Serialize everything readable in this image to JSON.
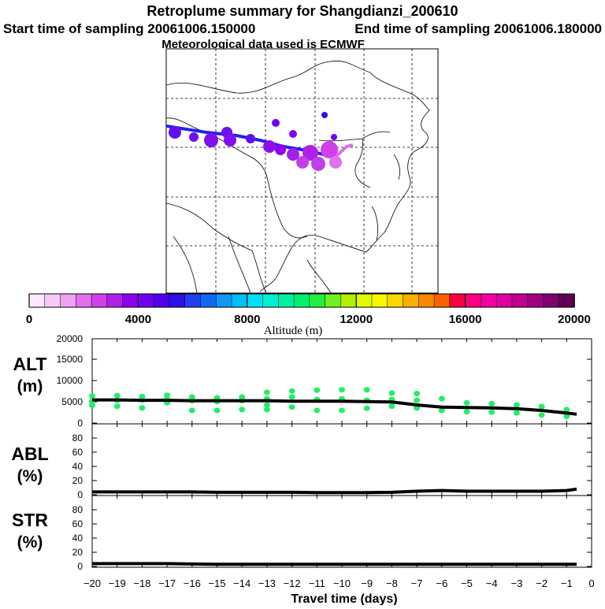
{
  "header": {
    "title": "Retroplume summary for Shangdianzi_200610",
    "start_label": "Start time of sampling 20061006.150000",
    "end_label": "End time of sampling 20061006.180000",
    "met_label": "Meteorological data used is ECMWF"
  },
  "colors": {
    "scale": [
      "#ffe8ff",
      "#f8c8f8",
      "#f0a0f0",
      "#e070ec",
      "#d040e8",
      "#b020e8",
      "#9000f0",
      "#7000f0",
      "#5000e8",
      "#3010e8",
      "#2040f0",
      "#1068f0",
      "#1098f8",
      "#00c0f8",
      "#00e0f8",
      "#00f0d0",
      "#00f0a0",
      "#00f070",
      "#20f040",
      "#70f020",
      "#b0f000",
      "#e0f800",
      "#f8f800",
      "#f8d800",
      "#f8b000",
      "#f88800",
      "#f86000",
      "#f80040",
      "#f80080",
      "#f000a0",
      "#e000a0",
      "#c00090",
      "#a00080",
      "#800070",
      "#600050"
    ],
    "alt_points": "#22ee66",
    "line": "#000000",
    "trajectory": "#3020e8"
  },
  "colorbar": {
    "tick_labels": [
      "0",
      "4000",
      "8000",
      "12000",
      "16000",
      "20000"
    ],
    "label": "Altitude (m)"
  },
  "chart_data": [
    {
      "type": "line",
      "name": "ALT",
      "ylabel": "ALT",
      "yunit": "(m)",
      "ylim": [
        0,
        20000
      ],
      "yticks": [
        "20000",
        "15000",
        "10000",
        "5000",
        "0"
      ],
      "x": [
        -20,
        -19,
        -18,
        -17,
        -16,
        -15,
        -14,
        -13,
        -12,
        -11,
        -10,
        -9,
        -8,
        -7,
        -6,
        -5,
        -4,
        -3,
        -2,
        -1,
        -0.6
      ],
      "mean": [
        5500,
        5500,
        5400,
        5400,
        5300,
        5300,
        5300,
        5300,
        5200,
        5200,
        5200,
        5100,
        5000,
        4300,
        3800,
        3700,
        3600,
        3400,
        3000,
        2400,
        2100
      ],
      "scatter_x": [
        -20,
        -20,
        -20,
        -19,
        -19,
        -19,
        -18,
        -18,
        -18,
        -17,
        -17,
        -17,
        -16,
        -16,
        -16,
        -15,
        -15,
        -15,
        -14,
        -14,
        -14,
        -13,
        -13,
        -13,
        -13,
        -12,
        -12,
        -12,
        -11,
        -11,
        -11,
        -10,
        -10,
        -10,
        -9,
        -9,
        -9,
        -8,
        -8,
        -8,
        -7,
        -7,
        -7,
        -6,
        -6,
        -5,
        -5,
        -4,
        -4,
        -3,
        -3,
        -2,
        -2,
        -1,
        -1
      ],
      "scatter_y": [
        6400,
        5200,
        4200,
        6500,
        5400,
        4000,
        6300,
        5500,
        3600,
        6600,
        5700,
        4800,
        6200,
        5300,
        3000,
        6000,
        5100,
        3000,
        6200,
        5300,
        3200,
        7300,
        5800,
        4300,
        3200,
        7600,
        6200,
        3800,
        7800,
        5600,
        3000,
        7900,
        5800,
        3000,
        7900,
        5400,
        3500,
        7100,
        5600,
        4000,
        7000,
        5400,
        3600,
        5800,
        3000,
        4800,
        2700,
        4600,
        2600,
        4300,
        2400,
        3900,
        1900,
        3200,
        1600
      ]
    },
    {
      "type": "line",
      "name": "ABL",
      "ylabel": "ABL",
      "yunit": "(%)",
      "ylim": [
        0,
        100
      ],
      "yticks": [
        "80",
        "60",
        "40",
        "20",
        "0"
      ],
      "x": [
        -20,
        -19,
        -18,
        -17,
        -16,
        -15,
        -14,
        -13,
        -12,
        -11,
        -10,
        -9,
        -8,
        -7,
        -6,
        -5,
        -4,
        -3,
        -2,
        -1,
        -0.6
      ],
      "values": [
        4,
        4,
        4,
        4,
        4,
        3.5,
        3.5,
        3.5,
        3.5,
        3,
        3,
        3,
        3.5,
        5,
        6,
        5,
        5,
        5,
        5,
        6,
        8
      ]
    },
    {
      "type": "line",
      "name": "STR",
      "ylabel": "STR",
      "yunit": "(%)",
      "ylim": [
        0,
        100
      ],
      "yticks": [
        "80",
        "60",
        "40",
        "20",
        "0"
      ],
      "x": [
        -20,
        -19,
        -18,
        -17,
        -16,
        -15,
        -14,
        -13,
        -12,
        -11,
        -10,
        -9,
        -8,
        -7,
        -6,
        -5,
        -4,
        -3,
        -2,
        -1,
        -0.6
      ],
      "values": [
        4,
        4,
        4,
        4,
        3.5,
        3,
        3,
        3,
        3,
        3,
        3,
        3,
        3,
        3,
        3,
        3,
        3,
        3,
        3,
        3,
        3
      ],
      "xlabel": "Travel time (days)",
      "xtick_labels": [
        "−20",
        "−19",
        "−18",
        "−17",
        "−16",
        "−15",
        "−14",
        "−13",
        "−12",
        "−11",
        "−10",
        "−9",
        "−8",
        "−7",
        "−6",
        "−5",
        "−4",
        "−3",
        "−2",
        "−1",
        "0"
      ]
    }
  ]
}
